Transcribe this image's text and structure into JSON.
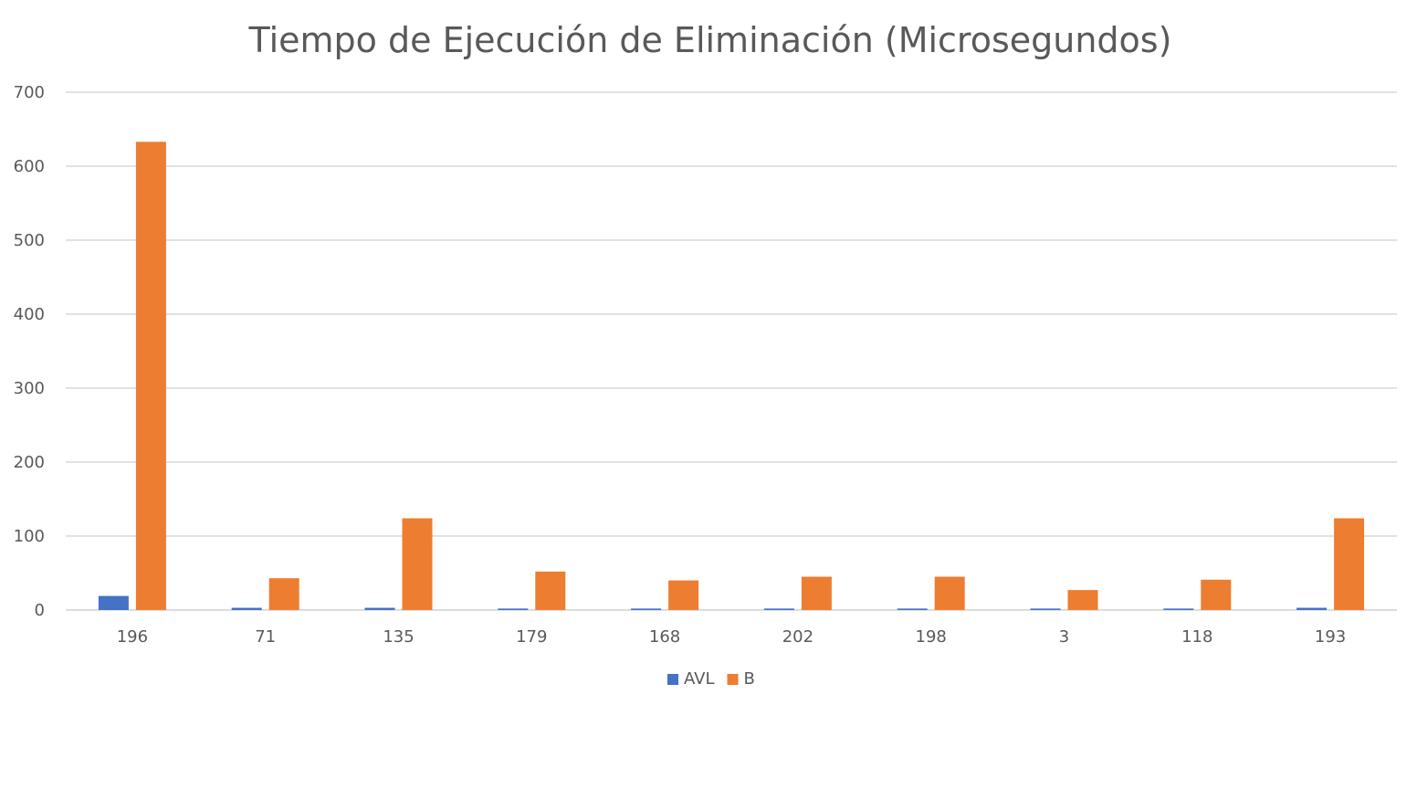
{
  "chart_data": {
    "type": "bar",
    "title": "Tiempo de Ejecución de Eliminación (Microsegundos)",
    "xlabel": "",
    "ylabel": "",
    "categories": [
      "196",
      "71",
      "135",
      "179",
      "168",
      "202",
      "198",
      "3",
      "118",
      "193"
    ],
    "series": [
      {
        "name": "AVL",
        "color": "#4472c4",
        "values": [
          19,
          3,
          3,
          2,
          2,
          2,
          2,
          2,
          2,
          3
        ]
      },
      {
        "name": "B",
        "color": "#ed7d31",
        "values": [
          633,
          43,
          124,
          52,
          40,
          45,
          45,
          27,
          41,
          124
        ]
      }
    ],
    "ylim": [
      0,
      700
    ],
    "yticks": [
      "0",
      "100",
      "200",
      "300",
      "400",
      "500",
      "600",
      "700"
    ],
    "grid": true,
    "legend_position": "bottom"
  }
}
